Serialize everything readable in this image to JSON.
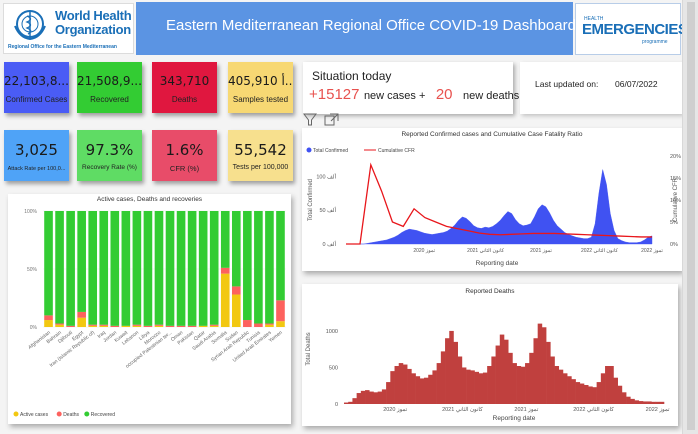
{
  "header": {
    "logo": {
      "line1": "World Health",
      "line2": "Organization",
      "subtitle": "Regional Office for the Eastern Mediterranean"
    },
    "title": "Eastern Mediterranean Regional Office COVID-19 Dashboard",
    "partner_logo": {
      "top": "HEALTH",
      "main": "EMERGENCIES",
      "bottom": "programme"
    }
  },
  "kpis_row1": [
    {
      "value": "22,103,8...",
      "label": "Confirmed Cases",
      "color": "#4a5cf5"
    },
    {
      "value": "21,508,9...",
      "label": "Recovered",
      "color": "#33cc33"
    },
    {
      "value": "343,710",
      "label": "Deaths",
      "color": "#e0173f"
    },
    {
      "value": "405,910 أ...",
      "label": "Samples tested",
      "color": "#f7d873"
    }
  ],
  "kpis_row2": [
    {
      "value": "3,025",
      "label": "Attack Rate per 100,0...",
      "color": "#4fa3f7"
    },
    {
      "value": "97.3%",
      "label": "Recovery Rate (%)",
      "color": "#5fdc64"
    },
    {
      "value": "1.6%",
      "label": "CFR (%)",
      "color": "#e84c69"
    },
    {
      "value": "55,542",
      "label": "Tests per 100,000",
      "color": "#f7e08e"
    }
  ],
  "situation": {
    "title": "Situation today",
    "new_cases": "+15127",
    "new_cases_label": "new cases +",
    "new_deaths": "20",
    "new_deaths_label": "new deaths"
  },
  "last_updated": {
    "label": "Last updated on:",
    "value": "06/07/2022"
  },
  "toolbar": {
    "filter_icon": "filter-icon",
    "focus_icon": "focus-mode-icon"
  },
  "chart_data": [
    {
      "type": "bar",
      "title": "Active cases, Deaths  and recoveries",
      "stacked": "100%",
      "categories": [
        "Afghanistan",
        "Bahrain",
        "Djibouti",
        "Egypt",
        "Iran (Islamic Republic of)",
        "Iraq",
        "Jordan",
        "Kuwait",
        "Lebanon",
        "Libya",
        "Morocco",
        "occupied Palestinian territory",
        "Oman",
        "Pakistan",
        "Qatar",
        "Saudi Arabia",
        "Somalia",
        "Sudan",
        "Syrian Arab Republic",
        "Tunisia",
        "United Arab Emirates",
        "Yemen"
      ],
      "series": [
        {
          "name": "Active cases",
          "color": "#f2c811",
          "values": [
            6,
            2,
            0,
            8,
            1,
            1,
            0,
            1,
            1,
            0,
            1,
            0,
            0,
            0,
            1,
            1,
            46,
            28,
            0,
            0,
            2,
            5
          ]
        },
        {
          "name": "Deaths",
          "color": "#fd625e",
          "values": [
            4,
            1,
            1,
            5,
            1,
            1,
            1,
            0,
            1,
            1,
            1,
            1,
            1,
            1,
            0,
            1,
            5,
            7,
            6,
            3,
            1,
            18
          ]
        },
        {
          "name": "Recovered",
          "color": "#33cc33",
          "values": [
            90,
            97,
            99,
            87,
            98,
            98,
            99,
            99,
            98,
            99,
            98,
            99,
            99,
            99,
            99,
            98,
            49,
            65,
            94,
            97,
            97,
            77
          ]
        }
      ],
      "yticks": [
        "0%",
        "50%",
        "100%"
      ],
      "legend": "bottom-left"
    },
    {
      "type": "area",
      "title": "Reported Confirmed cases and Cumulative Case Fatality Ratio",
      "legend": [
        {
          "name": "Total Confirmed",
          "color": "#4052f2"
        },
        {
          "name": "Cumulative CFR",
          "color": "#e8161b"
        }
      ],
      "xlabel": "Reporting date",
      "ylabel": "Total Confirmed",
      "y2label": "Cumulative CFR",
      "yticks": [
        "0 ألف",
        "50 ألف",
        "100 ألف"
      ],
      "y2ticks": [
        "0%",
        "5%",
        "10%",
        "15%",
        "20%"
      ],
      "xticks": [
        "تموز 2020",
        "كانون الثاني 2021",
        "تموز 2021",
        "كانون الثاني 2022",
        "تموز 2022"
      ],
      "ylim": [
        0,
        130000
      ],
      "y2lim": [
        0,
        20
      ],
      "confirmed_weekly_k": [
        0,
        0,
        1,
        2,
        3,
        4,
        5,
        6,
        8,
        10,
        13,
        17,
        20,
        22,
        21,
        20,
        18,
        16,
        15,
        14,
        15,
        16,
        17,
        19,
        23,
        28,
        35,
        40,
        38,
        33,
        27,
        24,
        23,
        25,
        24,
        26,
        30,
        35,
        42,
        48,
        45,
        36,
        30,
        27,
        28,
        30,
        40,
        52,
        58,
        55,
        46,
        35,
        27,
        22,
        17,
        14,
        12,
        10,
        9,
        8,
        8,
        10,
        30,
        75,
        110,
        88,
        45,
        20,
        8,
        5,
        3,
        2,
        2,
        2,
        3,
        6,
        10,
        12
      ],
      "cfr_percent": [
        0,
        18,
        12,
        5,
        4,
        8,
        6,
        5,
        4,
        3.5,
        3,
        2.5,
        2.2,
        2.1,
        2.2,
        2.3,
        2.4,
        2.4,
        2.4,
        2.3,
        2.2,
        2.1,
        2.0,
        1.9,
        1.8,
        1.7,
        1.6,
        1.6
      ]
    },
    {
      "type": "bar",
      "title": "Reported Deaths",
      "color": "#c0403e",
      "xlabel": "Reporting date",
      "ylabel": "Total Deaths",
      "yticks": [
        "0",
        "500",
        "1000"
      ],
      "xticks": [
        "تموز 2020",
        "كانون الثاني 2021",
        "تموز 2021",
        "كانون الثاني 2022",
        "تموز 2022"
      ],
      "ylim": [
        0,
        1300
      ],
      "deaths_weekly": [
        20,
        30,
        80,
        150,
        180,
        190,
        170,
        160,
        170,
        200,
        300,
        450,
        520,
        560,
        540,
        480,
        420,
        380,
        350,
        360,
        400,
        460,
        560,
        720,
        900,
        1000,
        850,
        650,
        500,
        470,
        460,
        440,
        420,
        430,
        520,
        650,
        800,
        950,
        880,
        700,
        560,
        520,
        510,
        560,
        700,
        900,
        1100,
        1050,
        850,
        650,
        520,
        470,
        420,
        380,
        340,
        300,
        280,
        260,
        240,
        230,
        300,
        420,
        520,
        520,
        360,
        250,
        160,
        100,
        70,
        50,
        40,
        35,
        35,
        30,
        30,
        30
      ]
    }
  ]
}
